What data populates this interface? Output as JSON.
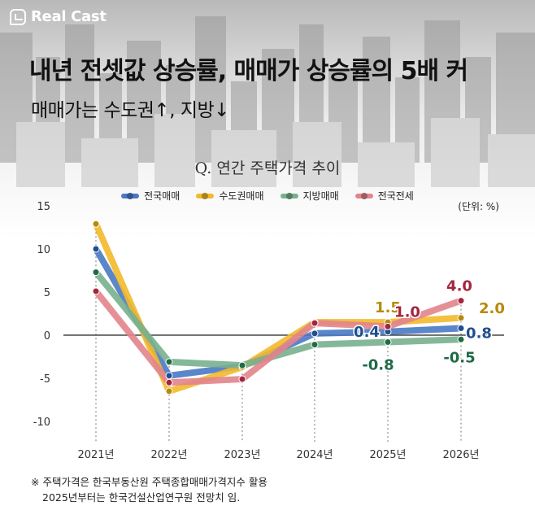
{
  "brand": {
    "name": "Real Cast"
  },
  "headline": "내년 전셋값 상승률, 매매가 상승률의 5배 커",
  "subhead": "매매가는 수도권↑, 지방↓",
  "unit_label": "(단위: %)",
  "footnote": {
    "line1": "※ 주택가격은 한국부동산원 주택종합매매가격지수 활용",
    "line2": "2025년부터는 한국건설산업연구원 전망치 임."
  },
  "chart_data": {
    "type": "line",
    "title": "Q. 연간 주택가격 추이",
    "xlabel": "",
    "ylabel": "",
    "categories": [
      "2021년",
      "2022년",
      "2023년",
      "2024년",
      "2025년",
      "2026년"
    ],
    "ylim": [
      -10,
      15
    ],
    "yticks": [
      15,
      10,
      5,
      0,
      -5,
      -10
    ],
    "ytick_labels": [
      "15",
      "10",
      "5",
      "0",
      "-5",
      "-10"
    ],
    "series": [
      {
        "name": "전국매매",
        "color": "#4a79c4",
        "dot": "#1f4f8f",
        "values": [
          10.0,
          -4.7,
          -3.6,
          0.2,
          0.4,
          0.8
        ]
      },
      {
        "name": "수도권매매",
        "color": "#f2b92b",
        "dot": "#b88a0a",
        "values": [
          12.9,
          -6.5,
          -3.7,
          1.5,
          1.5,
          2.0
        ]
      },
      {
        "name": "지방매매",
        "color": "#78b08e",
        "dot": "#1e6b45",
        "values": [
          7.3,
          -3.1,
          -3.5,
          -1.1,
          -0.8,
          -0.5
        ]
      },
      {
        "name": "전국전세",
        "color": "#e2848c",
        "dot": "#a3253e",
        "values": [
          5.1,
          -5.5,
          -5.1,
          1.4,
          1.0,
          4.0
        ]
      }
    ],
    "annotations": [
      {
        "text": "1.5",
        "color": "#b88a0a",
        "series": 1,
        "index": 4
      },
      {
        "text": "1.0",
        "color": "#a3253e",
        "series": 3,
        "index": 4
      },
      {
        "text": "0.4",
        "color": "#1f4f8f",
        "series": 0,
        "index": 4
      },
      {
        "text": "-0.8",
        "color": "#1e6b45",
        "series": 2,
        "index": 4
      },
      {
        "text": "4.0",
        "color": "#a3253e",
        "series": 3,
        "index": 5
      },
      {
        "text": "2.0",
        "color": "#b88a0a",
        "series": 1,
        "index": 5
      },
      {
        "text": "0.8",
        "color": "#1f4f8f",
        "series": 0,
        "index": 5
      },
      {
        "text": "-0.5",
        "color": "#1e6b45",
        "series": 2,
        "index": 5
      }
    ]
  }
}
